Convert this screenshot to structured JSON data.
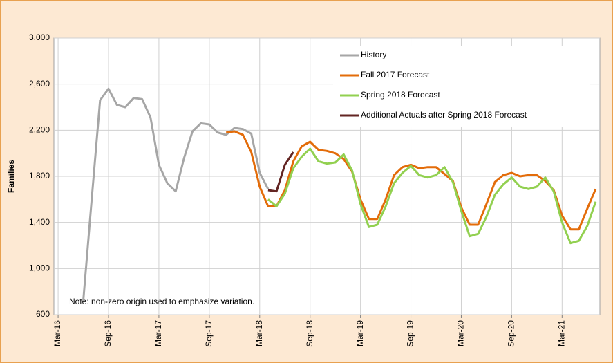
{
  "chart_data": {
    "type": "line",
    "y_label": "Families",
    "annotation": "Note: non-zero origin used to emphasize variation.",
    "categories": [
      "Mar-16",
      null,
      null,
      null,
      null,
      null,
      "Sep-16",
      null,
      null,
      null,
      null,
      null,
      "Mar-17",
      null,
      null,
      null,
      null,
      null,
      "Sep-17",
      null,
      null,
      null,
      null,
      null,
      "Mar-18",
      null,
      null,
      null,
      null,
      null,
      "Sep-18",
      null,
      null,
      null,
      null,
      null,
      "Mar-19",
      null,
      null,
      null,
      null,
      null,
      "Sep-19",
      null,
      null,
      null,
      null,
      null,
      "Mar-20",
      null,
      null,
      null,
      null,
      null,
      "Sep-20",
      null,
      null,
      null,
      null,
      null,
      "Mar-21",
      null,
      null,
      null,
      null
    ],
    "series": [
      {
        "name": "History",
        "color": "#a6a6a6",
        "values": [
          null,
          null,
          null,
          720,
          1600,
          2460,
          2560,
          2420,
          2400,
          2480,
          2470,
          2310,
          1900,
          1740,
          1670,
          1960,
          2190,
          2260,
          2250,
          2180,
          2160,
          2220,
          2210,
          2170,
          1830,
          1690,
          null,
          null,
          null,
          null,
          null,
          null,
          null,
          null,
          null,
          null,
          null,
          null,
          null,
          null,
          null,
          null,
          null,
          null,
          null,
          null,
          null,
          null,
          null,
          null,
          null,
          null,
          null,
          null,
          null,
          null,
          null,
          null,
          null,
          null,
          null,
          null,
          null,
          null,
          null
        ]
      },
      {
        "name": "Fall 2017 Forecast",
        "color": "#e36c0a",
        "values": [
          null,
          null,
          null,
          null,
          null,
          null,
          null,
          null,
          null,
          null,
          null,
          null,
          null,
          null,
          null,
          null,
          null,
          null,
          null,
          null,
          2180,
          2190,
          2160,
          2010,
          1710,
          1540,
          1540,
          1680,
          1930,
          2060,
          2100,
          2030,
          2020,
          2000,
          1950,
          1840,
          1600,
          1430,
          1430,
          1600,
          1810,
          1880,
          1900,
          1870,
          1880,
          1880,
          1820,
          1760,
          1530,
          1380,
          1380,
          1560,
          1750,
          1810,
          1830,
          1800,
          1810,
          1810,
          1760,
          1680,
          1460,
          1340,
          1340,
          1520,
          1690
        ]
      },
      {
        "name": "Spring 2018 Forecast",
        "color": "#92d050",
        "values": [
          null,
          null,
          null,
          null,
          null,
          null,
          null,
          null,
          null,
          null,
          null,
          null,
          null,
          null,
          null,
          null,
          null,
          null,
          null,
          null,
          null,
          null,
          null,
          null,
          null,
          1600,
          1540,
          1650,
          1870,
          1970,
          2040,
          1930,
          1910,
          1920,
          1990,
          1850,
          1560,
          1360,
          1380,
          1540,
          1740,
          1830,
          1890,
          1810,
          1790,
          1810,
          1880,
          1750,
          1500,
          1280,
          1300,
          1450,
          1640,
          1730,
          1790,
          1710,
          1690,
          1710,
          1790,
          1670,
          1400,
          1220,
          1240,
          1370,
          1580
        ]
      },
      {
        "name": "Additional Actuals after Spring 2018 Forecast",
        "color": "#632523",
        "values": [
          null,
          null,
          null,
          null,
          null,
          null,
          null,
          null,
          null,
          null,
          null,
          null,
          null,
          null,
          null,
          null,
          null,
          null,
          null,
          null,
          null,
          null,
          null,
          null,
          null,
          1680,
          1670,
          1900,
          2010,
          null,
          null,
          null,
          null,
          null,
          null,
          null,
          null,
          null,
          null,
          null,
          null,
          null,
          null,
          null,
          null,
          null,
          null,
          null,
          null,
          null,
          null,
          null,
          null,
          null,
          null,
          null,
          null,
          null,
          null,
          null,
          null,
          null,
          null,
          null,
          null
        ]
      }
    ],
    "ylim": [
      600,
      3000
    ],
    "yticks": [
      600,
      {
        "value": 1000,
        "label": "1,000"
      },
      {
        "value": 1400,
        "label": "1,400"
      },
      {
        "value": 1800,
        "label": "1,800"
      },
      {
        "value": 2200,
        "label": "2,200"
      },
      {
        "value": 2600,
        "label": "2,600"
      },
      {
        "value": 3000,
        "label": "3,000"
      }
    ],
    "grid": true,
    "legend": "top-right"
  }
}
